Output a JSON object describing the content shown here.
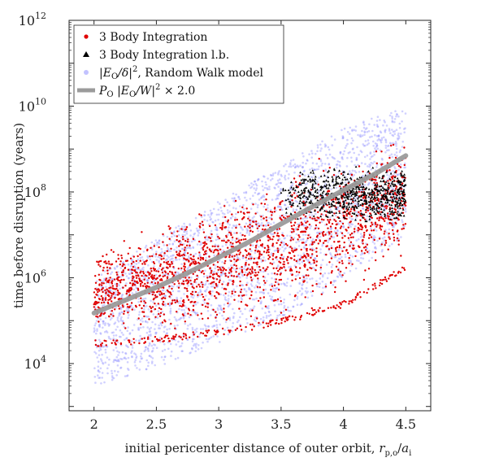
{
  "chart_data": {
    "type": "scatter",
    "title": "",
    "xlabel": "initial pericenter distance of outer orbit, r_{p,o}/a_i",
    "ylabel": "time before disruption (years)",
    "xlim": [
      1.8,
      4.7
    ],
    "ylim_log10": [
      2.9,
      12
    ],
    "yscale": "log",
    "grid": false,
    "legend_position": "top-left",
    "x_ticks": [
      "2",
      "2.5",
      "3",
      "3.5",
      "4",
      "4.5"
    ],
    "x_tick_values": [
      2,
      2.5,
      3,
      3.5,
      4,
      4.5
    ],
    "y_ticks": [
      {
        "base": "10",
        "exp": "4",
        "value": 10000
      },
      {
        "base": "10",
        "exp": "6",
        "value": 1000000
      },
      {
        "base": "10",
        "exp": "8",
        "value": 100000000
      },
      {
        "base": "10",
        "exp": "10",
        "value": 10000000000
      },
      {
        "base": "10",
        "exp": "12",
        "value": 1000000000000
      }
    ],
    "series": [
      {
        "name": "3 Body Integration",
        "marker": "dot",
        "color": "#e00000",
        "description_of_trend": "points spread between ~2e4 and ~1e9 years, rising with pericenter distance",
        "approx_lower_envelope": [
          [
            2.0,
            25000
          ],
          [
            2.5,
            30000
          ],
          [
            3.0,
            45000
          ],
          [
            3.5,
            80000
          ],
          [
            4.0,
            200000
          ],
          [
            4.5,
            1500000
          ]
        ],
        "approx_upper_envelope": [
          [
            2.0,
            8000000
          ],
          [
            2.5,
            30000000
          ],
          [
            3.0,
            100000000
          ],
          [
            3.5,
            400000000
          ],
          [
            4.0,
            2000000000
          ],
          [
            4.5,
            3000000000
          ]
        ]
      },
      {
        "name": "3 Body Integration l.b.",
        "marker": "triangle",
        "color": "#000000",
        "description_of_trend": "clustered between x=3.5 and 4.5 near 1e8 years",
        "approx_range_x": [
          3.5,
          4.5
        ],
        "approx_range_y": [
          20000000,
          400000000
        ]
      },
      {
        "name": "|E_O/δ|^2, Random Walk model",
        "marker": "dot",
        "color": "#9a9aff",
        "description_of_trend": "diffuse band from ~3e3 at x=2 up to ~1e10 at x=4.5",
        "approx_lower_envelope": [
          [
            2.0,
            3000
          ],
          [
            2.5,
            8000
          ],
          [
            3.0,
            30000
          ],
          [
            3.5,
            120000
          ],
          [
            4.0,
            800000
          ],
          [
            4.5,
            10000000
          ]
        ],
        "approx_upper_envelope": [
          [
            2.0,
            1000000
          ],
          [
            2.5,
            8000000
          ],
          [
            3.0,
            60000000
          ],
          [
            3.5,
            400000000
          ],
          [
            4.0,
            3000000000
          ],
          [
            4.5,
            10000000000
          ]
        ]
      },
      {
        "name": "P_O |E_O/W|^2 × 2.0",
        "marker": "line",
        "color": "#9b9b9b",
        "x": [
          2.0,
          2.25,
          2.5,
          2.75,
          3.0,
          3.25,
          3.5,
          3.75,
          4.0,
          4.25,
          4.5
        ],
        "y": [
          150000,
          300000,
          600000,
          1300000,
          3000000,
          7000000,
          18000000,
          45000000,
          110000000,
          260000000,
          700000000
        ]
      }
    ]
  },
  "legend": {
    "items": [
      {
        "label": "3 Body Integration",
        "color": "#e00000"
      },
      {
        "label": "3 Body Integration l.b.",
        "color": "#000000"
      },
      {
        "label_math": "|E",
        "label_sub": "O",
        "label_math2": "/δ|",
        "label_sup": "2",
        "label_rest": ", Random Walk model",
        "color": "#9a9aff"
      },
      {
        "label_math": "P",
        "label_sub": "O",
        "label_math2": " |E",
        "label_sub2": "O",
        "label_math3": "/W|",
        "label_sup": "2",
        "label_rest": " × 2.0",
        "color": "#9b9b9b"
      }
    ]
  }
}
